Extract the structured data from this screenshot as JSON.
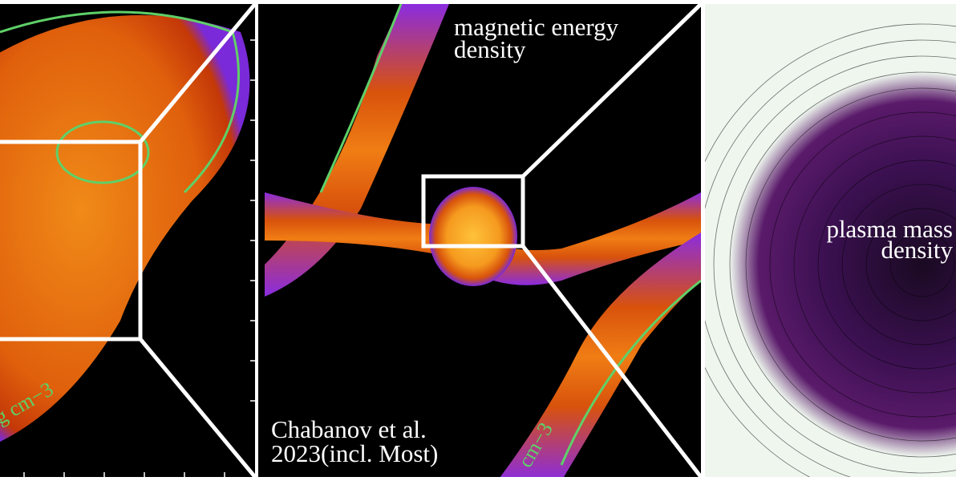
{
  "left_panel": {
    "contour_label": "g cm−3"
  },
  "middle_panel": {
    "title_lines": [
      "magnetic energy",
      "density"
    ],
    "credit_lines": [
      "Chabanov et al.",
      "2023(incl. Most)"
    ],
    "contour_label": "cm−3"
  },
  "right_panel": {
    "title_lines": [
      "plasma mass",
      "density"
    ]
  }
}
